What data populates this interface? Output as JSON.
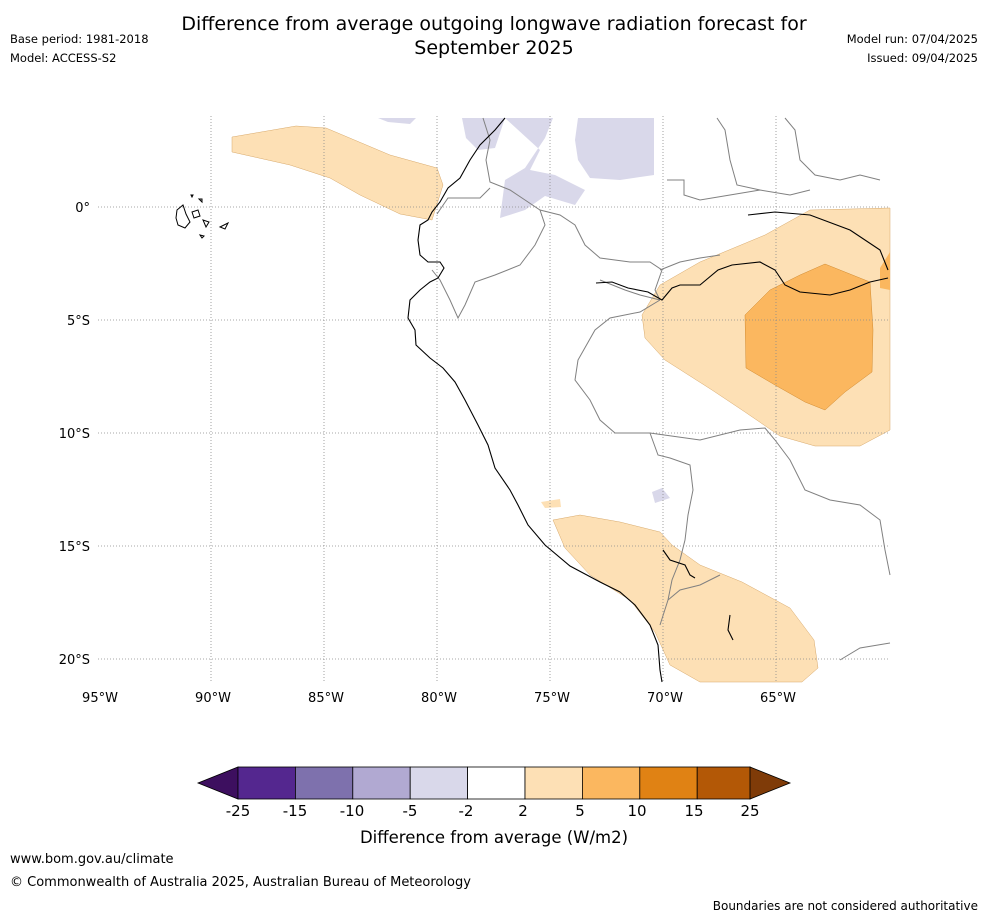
{
  "header": {
    "title_line1": "Difference from average outgoing longwave radiation forecast for",
    "title_line2": "September 2025",
    "base_period": "Base period: 1981-2018",
    "model": "Model: ACCESS-S2",
    "model_run": "Model run: 07/04/2025",
    "issued": "Issued: 09/04/2025"
  },
  "map": {
    "lat_labels": [
      "0°",
      "5°S",
      "10°S",
      "15°S",
      "20°S"
    ],
    "lon_labels": [
      "95°W",
      "90°W",
      "85°W",
      "80°W",
      "75°W",
      "70°W",
      "65°W"
    ],
    "lat_values": [
      0,
      -5,
      -10,
      -15,
      -20
    ],
    "lon_values": [
      -95,
      -90,
      -85,
      -80,
      -75,
      -70,
      -65
    ],
    "extent": {
      "lon_min": -95,
      "lon_max": -60,
      "lat_min": -21,
      "lat_max": 4
    }
  },
  "colorbar": {
    "label": "Difference from average (W/m2)",
    "ticks": [
      "-25",
      "-15",
      "-10",
      "-5",
      "-2",
      "2",
      "5",
      "10",
      "15",
      "25"
    ],
    "colors": [
      "#3d0f5f",
      "#54278f",
      "#7e71ad",
      "#b1a9d2",
      "#d9d8ea",
      "#ffffff",
      "#fde0b5",
      "#fbb75f",
      "#e08214",
      "#b35806",
      "#7f3b08"
    ]
  },
  "footer": {
    "url": "www.bom.gov.au/climate",
    "copyright": "© Commonwealth of Australia 2025, Australian Bureau of Meteorology",
    "disclaimer": "Boundaries are not considered authoritative"
  }
}
